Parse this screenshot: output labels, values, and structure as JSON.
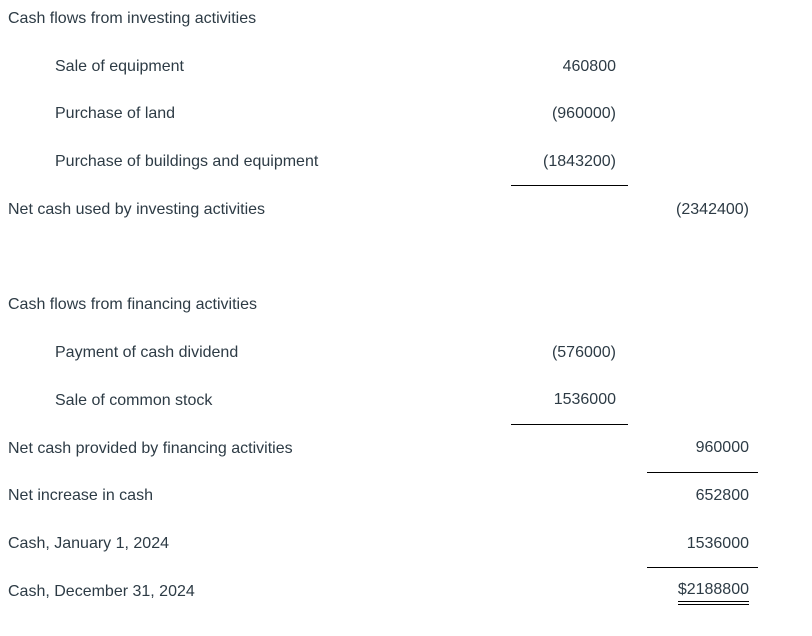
{
  "colors": {
    "text": "#2D3B45",
    "rule": "#000000",
    "background": "#FFFFFF"
  },
  "statement": {
    "rows": [
      {
        "type": "section-header",
        "label": "Cash flows from investing activities"
      },
      {
        "type": "detail",
        "label": "Sale of equipment",
        "col2": "460800"
      },
      {
        "type": "detail",
        "label": "Purchase of land",
        "col2": "(960000)"
      },
      {
        "type": "detail",
        "label": "Purchase of buildings and equipment",
        "col2": "(1843200)",
        "rule_col2": true
      },
      {
        "type": "subtotal",
        "label": "Net cash used by investing activities",
        "col3": "(2342400)"
      },
      {
        "type": "spacer"
      },
      {
        "type": "section-header",
        "label": "Cash flows from financing activities"
      },
      {
        "type": "detail",
        "label": "Payment of cash dividend",
        "col2": "(576000)"
      },
      {
        "type": "detail",
        "label": "Sale of common stock",
        "col2": "1536000",
        "rule_col2": true
      },
      {
        "type": "subtotal",
        "label": "Net cash provided by financing activities",
        "col3": "960000",
        "rule_col3": true
      },
      {
        "type": "subtotal",
        "label": "Net increase in cash",
        "col3": "652800"
      },
      {
        "type": "subtotal",
        "label": "Cash, January 1, 2024",
        "col3": "1536000",
        "rule_col3": true
      },
      {
        "type": "grand-total",
        "label": "Cash, December 31, 2024",
        "col3": "$2188800",
        "double_rule_col3": true
      }
    ]
  }
}
